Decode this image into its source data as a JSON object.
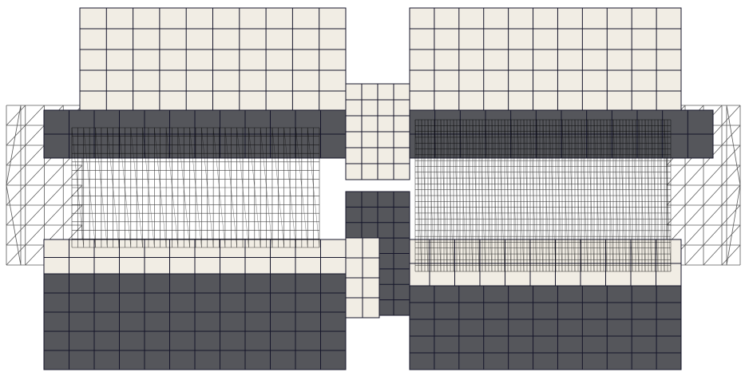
{
  "colors": {
    "background": "#ffffff",
    "face_light": "#f1ede4",
    "face_dark": "#55565b",
    "face_edge": "#15152a",
    "wire": "#000000",
    "wire_faint": "#5a5a5a"
  },
  "structure": {
    "parts": [
      "left-block",
      "right-block",
      "center-bridge",
      "left-wireframe-panel",
      "right-wireframe-panel"
    ],
    "right_panel_refinement": "dense"
  }
}
